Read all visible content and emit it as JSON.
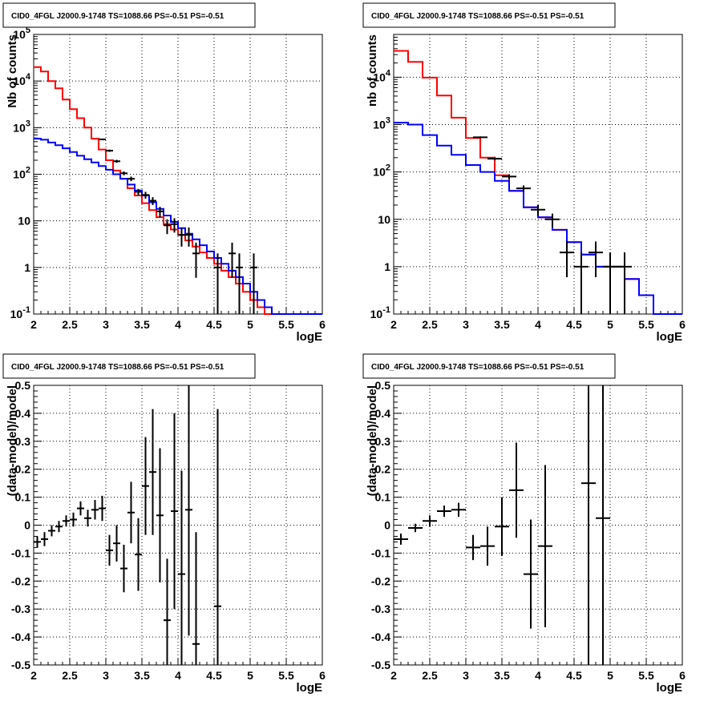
{
  "title": "CID0_4FGL J2000.9-1748 TS=1088.66 PS=-0.51 PS=-0.51",
  "colors": {
    "total_model": "#ff0000",
    "source_model": "#0000ff",
    "data": "#000000",
    "grid": "#000000",
    "background": "#ffffff"
  },
  "chart_data": [
    {
      "type": "line",
      "title": "CID0_4FGL J2000.9-1748 TS=1088.66 PS=-0.51 PS=-0.51",
      "xlabel": "logE",
      "ylabel": "Nb of counts",
      "xlim": [
        2,
        6
      ],
      "ylim": [
        0.1,
        100000
      ],
      "yscale": "log",
      "grid": true,
      "x_ticks": [
        "2",
        "2.5",
        "3",
        "3.5",
        "4",
        "4.5",
        "5",
        "5.5",
        "6"
      ],
      "y_ticks": [
        "10^-1",
        "1",
        "10",
        "10^2",
        "10^3",
        "10^4",
        "10^5"
      ],
      "bin_width": 0.1,
      "bin_edges_start": 2.0,
      "series": [
        {
          "style": "step",
          "color": "#ff0000",
          "values": [
            20000,
            16000,
            10000,
            7000,
            4000,
            2500,
            1600,
            1000,
            580,
            340,
            200,
            120,
            80,
            50,
            35,
            24,
            17,
            12,
            8.5,
            6.5,
            5,
            3.8,
            2.8,
            2.1,
            1.6,
            1.2,
            0.85,
            0.62,
            0.45,
            0.3,
            0.2,
            0.14,
            0.1,
            0.1,
            0.1,
            0.1,
            0.1,
            0.1,
            0.1,
            0.1
          ]
        },
        {
          "style": "step",
          "color": "#0000ff",
          "values": [
            580,
            550,
            480,
            420,
            360,
            300,
            250,
            210,
            180,
            150,
            125,
            100,
            80,
            60,
            45,
            35,
            25,
            18,
            13,
            9.5,
            7,
            5.3,
            4,
            3,
            2.2,
            1.6,
            1.2,
            0.85,
            0.62,
            0.45,
            0.3,
            0.2,
            0.14,
            0.1,
            0.1,
            0.1,
            0.1,
            0.1,
            0.1,
            0.1
          ]
        },
        {
          "style": "errorbar",
          "color": "#000000",
          "points": [
            {
              "x": 2.95,
              "y": 560,
              "err": 24
            },
            {
              "x": 3.05,
              "y": 320,
              "err": 18
            },
            {
              "x": 3.15,
              "y": 190,
              "err": 14
            },
            {
              "x": 3.25,
              "y": 105,
              "err": 10
            },
            {
              "x": 3.35,
              "y": 80,
              "err": 9
            },
            {
              "x": 3.45,
              "y": 42,
              "err": 6.5
            },
            {
              "x": 3.55,
              "y": 36,
              "err": 6
            },
            {
              "x": 3.65,
              "y": 27,
              "err": 5.2
            },
            {
              "x": 3.75,
              "y": 16,
              "err": 4
            },
            {
              "x": 3.85,
              "y": 8,
              "err": 2.8
            },
            {
              "x": 3.95,
              "y": 8.5,
              "err": 2.9
            },
            {
              "x": 4.05,
              "y": 5,
              "err": 2.2
            },
            {
              "x": 4.15,
              "y": 5,
              "err": 2.2
            },
            {
              "x": 4.25,
              "y": 2,
              "err": 1.4
            },
            {
              "x": 4.55,
              "y": 1,
              "err": 1
            },
            {
              "x": 4.75,
              "y": 2,
              "err": 1.4
            },
            {
              "x": 4.85,
              "y": 1,
              "err": 1
            },
            {
              "x": 5.05,
              "y": 1,
              "err": 1
            }
          ]
        }
      ]
    },
    {
      "type": "line",
      "title": "CID0_4FGL J2000.9-1748 TS=1088.66 PS=-0.51 PS=-0.51",
      "xlabel": "logE",
      "ylabel": "nb of counts",
      "xlim": [
        2,
        6
      ],
      "ylim": [
        0.1,
        80000
      ],
      "yscale": "log",
      "grid": true,
      "x_ticks": [
        "2",
        "2.5",
        "3",
        "3.5",
        "4",
        "4.5",
        "5",
        "5.5",
        "6"
      ],
      "y_ticks": [
        "10^-1",
        "1",
        "10",
        "10^2",
        "10^3",
        "10^4"
      ],
      "bin_width": 0.2,
      "bin_edges_start": 2.0,
      "series": [
        {
          "style": "step",
          "color": "#ff0000",
          "values": [
            36000,
            21000,
            9800,
            4100,
            1400,
            520,
            200,
            85,
            40,
            18,
            11,
            6,
            3.3,
            1.8,
            1,
            1,
            0.55,
            0.25,
            0.1,
            0.1
          ]
        },
        {
          "style": "step",
          "color": "#0000ff",
          "values": [
            1100,
            1000,
            600,
            360,
            230,
            140,
            100,
            65,
            40,
            18,
            11,
            6,
            3.3,
            1.8,
            1,
            1,
            0.55,
            0.25,
            0.1,
            0.1
          ]
        },
        {
          "style": "errorbar",
          "color": "#000000",
          "points": [
            {
              "x": 3.2,
              "y": 540,
              "err": 23
            },
            {
              "x": 3.4,
              "y": 190,
              "err": 14
            },
            {
              "x": 3.6,
              "y": 80,
              "err": 9
            },
            {
              "x": 3.8,
              "y": 45,
              "err": 7
            },
            {
              "x": 4.0,
              "y": 16,
              "err": 4
            },
            {
              "x": 4.2,
              "y": 10,
              "err": 3.2
            },
            {
              "x": 4.4,
              "y": 2,
              "err": 1.4
            },
            {
              "x": 4.6,
              "y": 1,
              "err": 1
            },
            {
              "x": 4.8,
              "y": 2,
              "err": 1.4
            },
            {
              "x": 5.0,
              "y": 1,
              "err": 1
            },
            {
              "x": 5.2,
              "y": 1,
              "err": 1
            }
          ]
        }
      ]
    },
    {
      "type": "scatter",
      "title": "CID0_4FGL J2000.9-1748 TS=1088.66 PS=-0.51 PS=-0.51",
      "xlabel": "logE",
      "ylabel": "(data-model)/model",
      "xlim": [
        2,
        6
      ],
      "ylim": [
        -0.5,
        0.5
      ],
      "grid": true,
      "x_ticks": [
        "2",
        "2.5",
        "3",
        "3.5",
        "4",
        "4.5",
        "5",
        "5.5",
        "6"
      ],
      "y_ticks": [
        "-0.5",
        "-0.4",
        "-0.3",
        "-0.2",
        "-0.1",
        "0",
        "0.1",
        "0.2",
        "0.3",
        "0.4",
        "0.5"
      ],
      "bin_width": 0.1,
      "points": [
        {
          "x": 2.05,
          "y": -0.06,
          "err": 0.02
        },
        {
          "x": 2.15,
          "y": -0.05,
          "err": 0.025
        },
        {
          "x": 2.25,
          "y": -0.02,
          "err": 0.02
        },
        {
          "x": 2.35,
          "y": -0.005,
          "err": 0.02
        },
        {
          "x": 2.45,
          "y": 0.015,
          "err": 0.02
        },
        {
          "x": 2.55,
          "y": 0.02,
          "err": 0.025
        },
        {
          "x": 2.65,
          "y": 0.06,
          "err": 0.025
        },
        {
          "x": 2.75,
          "y": 0.025,
          "err": 0.03
        },
        {
          "x": 2.85,
          "y": 0.055,
          "err": 0.035
        },
        {
          "x": 2.95,
          "y": 0.06,
          "err": 0.045
        },
        {
          "x": 3.05,
          "y": -0.09,
          "err": 0.055
        },
        {
          "x": 3.15,
          "y": -0.065,
          "err": 0.065
        },
        {
          "x": 3.25,
          "y": -0.155,
          "err": 0.085
        },
        {
          "x": 3.35,
          "y": 0.045,
          "err": 0.11
        },
        {
          "x": 3.45,
          "y": -0.105,
          "err": 0.13
        },
        {
          "x": 3.55,
          "y": 0.14,
          "err": 0.175
        },
        {
          "x": 3.65,
          "y": 0.19,
          "err": 0.225
        },
        {
          "x": 3.75,
          "y": 0.035,
          "err": 0.24
        },
        {
          "x": 3.85,
          "y": -0.34,
          "err": 0.22
        },
        {
          "x": 3.95,
          "y": 0.05,
          "err": 0.35
        },
        {
          "x": 4.05,
          "y": -0.175,
          "err": 0.37
        },
        {
          "x": 4.15,
          "y": 0.055,
          "err": 0.45
        },
        {
          "x": 4.25,
          "y": -0.425,
          "err": 0.4
        },
        {
          "x": 4.55,
          "y": -0.29,
          "err": 0.705
        }
      ]
    },
    {
      "type": "scatter",
      "title": "CID0_4FGL J2000.9-1748 TS=1088.66 PS=-0.51 PS=-0.51",
      "xlabel": "logE",
      "ylabel": "(data-model)/model",
      "xlim": [
        2,
        6
      ],
      "ylim": [
        -0.5,
        0.5
      ],
      "grid": true,
      "x_ticks": [
        "2",
        "2.5",
        "3",
        "3.5",
        "4",
        "4.5",
        "5",
        "5.5",
        "6"
      ],
      "y_ticks": [
        "-0.5",
        "-0.4",
        "-0.3",
        "-0.2",
        "-0.1",
        "0",
        "0.1",
        "0.2",
        "0.3",
        "0.4",
        "0.5"
      ],
      "bin_width": 0.2,
      "points": [
        {
          "x": 2.1,
          "y": -0.05,
          "err": 0.02
        },
        {
          "x": 2.3,
          "y": -0.01,
          "err": 0.015
        },
        {
          "x": 2.5,
          "y": 0.015,
          "err": 0.02
        },
        {
          "x": 2.7,
          "y": 0.05,
          "err": 0.02
        },
        {
          "x": 2.9,
          "y": 0.055,
          "err": 0.025
        },
        {
          "x": 3.1,
          "y": -0.08,
          "err": 0.045
        },
        {
          "x": 3.3,
          "y": -0.075,
          "err": 0.07
        },
        {
          "x": 3.5,
          "y": -0.005,
          "err": 0.105
        },
        {
          "x": 3.7,
          "y": 0.125,
          "err": 0.17
        },
        {
          "x": 3.9,
          "y": -0.175,
          "err": 0.195
        },
        {
          "x": 4.1,
          "y": -0.075,
          "err": 0.29
        },
        {
          "x": 4.7,
          "y": 0.15,
          "err": 0.7
        },
        {
          "x": 4.9,
          "y": 0.025,
          "err": 0.7
        }
      ]
    }
  ]
}
